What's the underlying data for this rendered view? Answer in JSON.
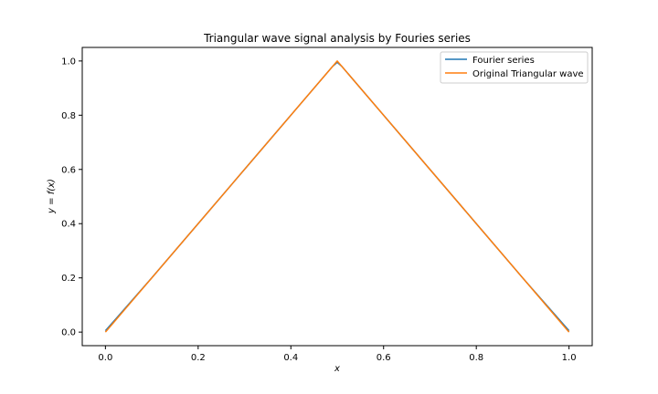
{
  "chart_data": {
    "type": "line",
    "title": "Triangular wave signal analysis by Fouries series",
    "xlabel": "x",
    "ylabel": "y = f(x)",
    "xlim": [
      -0.05,
      1.05
    ],
    "ylim": [
      -0.05,
      1.05
    ],
    "xticks": [
      0.0,
      0.2,
      0.4,
      0.6,
      0.8,
      1.0
    ],
    "xtick_labels": [
      "0.0",
      "0.2",
      "0.4",
      "0.6",
      "0.8",
      "1.0"
    ],
    "yticks": [
      0.0,
      0.2,
      0.4,
      0.6,
      0.8,
      1.0
    ],
    "ytick_labels": [
      "0.0",
      "0.2",
      "0.4",
      "0.6",
      "0.8",
      "1.0"
    ],
    "grid": false,
    "legend_position": "upper right",
    "series": [
      {
        "name": "Fourier series",
        "color": "#1f77b4",
        "x": [
          0.0,
          0.1,
          0.2,
          0.3,
          0.4,
          0.49,
          0.5,
          0.51,
          0.6,
          0.7,
          0.8,
          0.9,
          1.0
        ],
        "y": [
          0.005,
          0.2,
          0.4,
          0.6,
          0.8,
          0.98,
          0.995,
          0.98,
          0.8,
          0.6,
          0.4,
          0.2,
          0.005
        ]
      },
      {
        "name": "Original Triangular wave",
        "color": "#ff7f0e",
        "x": [
          0.0,
          0.5,
          1.0
        ],
        "y": [
          0.0,
          1.0,
          0.0
        ]
      }
    ]
  }
}
